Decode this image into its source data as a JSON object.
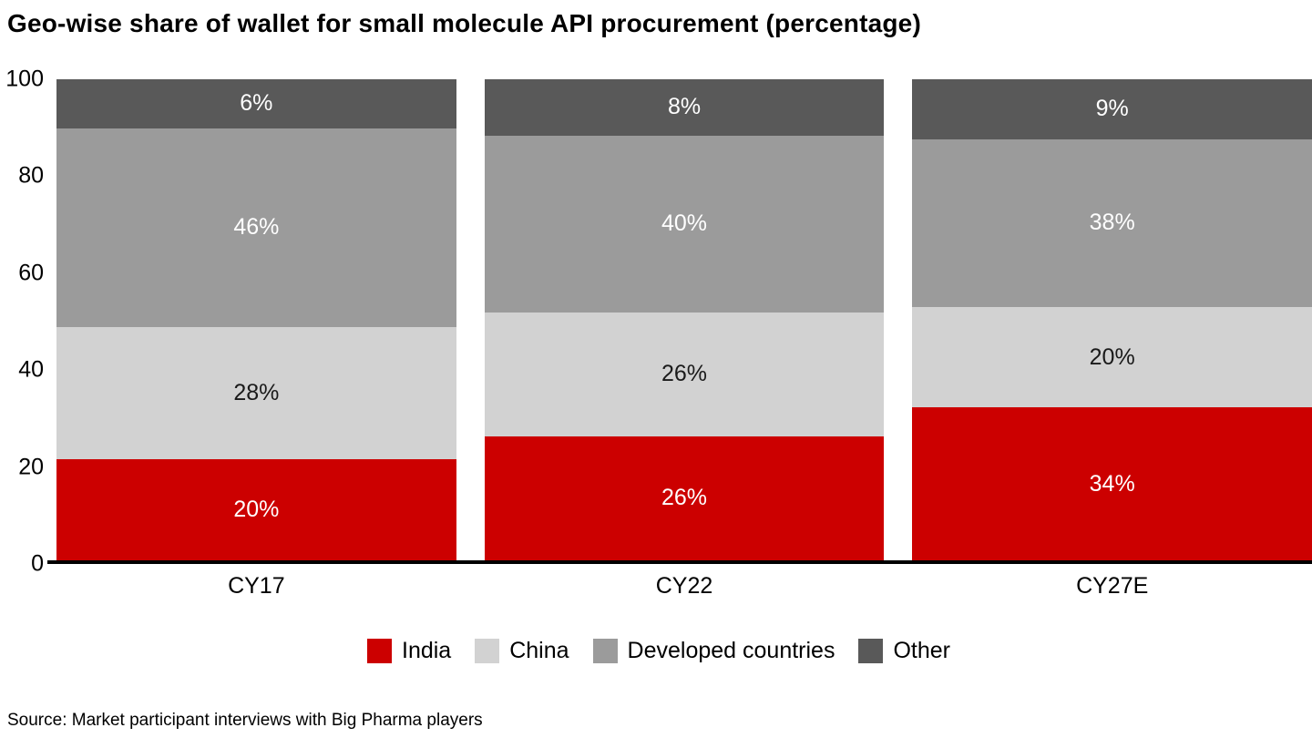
{
  "title": "Geo-wise share of wallet for small molecule API procurement (percentage)",
  "source": "Source: Market participant interviews with Big Pharma players",
  "chart_data": {
    "type": "bar",
    "stacked": true,
    "title": "Geo-wise share of wallet for small molecule API procurement (percentage)",
    "categories": [
      "CY17",
      "CY22",
      "CY27E"
    ],
    "series": [
      {
        "name": "India",
        "color": "#cc0000",
        "label_color": "#ffffff",
        "values": [
          20,
          26,
          34
        ]
      },
      {
        "name": "China",
        "color": "#d2d2d2",
        "label_color": "#1a1a1a",
        "values": [
          28,
          26,
          20
        ]
      },
      {
        "name": "Developed countries",
        "color": "#9b9b9b",
        "label_color": "#ffffff",
        "values": [
          46,
          40,
          38
        ]
      },
      {
        "name": "Other",
        "color": "#595959",
        "label_color": "#ffffff",
        "values": [
          6,
          8,
          9
        ]
      }
    ],
    "y_ticks": [
      0,
      20,
      40,
      60,
      80,
      100
    ],
    "ylim": [
      0,
      100
    ],
    "grid": false,
    "legend_position": "bottom"
  }
}
